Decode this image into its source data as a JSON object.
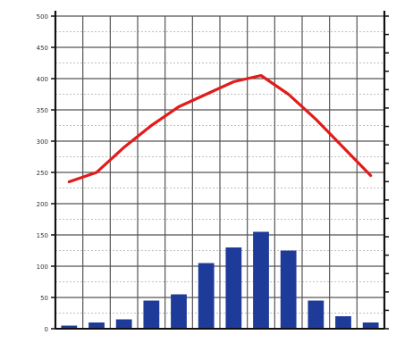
{
  "chart_data": {
    "type": "bar+line",
    "categories": [
      "",
      "",
      "",
      "",
      "",
      "",
      "",
      "",
      "",
      "",
      "",
      ""
    ],
    "series": [
      {
        "kind": "bar",
        "axis": "left",
        "color": "#1f3b9a",
        "values": [
          5,
          10,
          15,
          45,
          55,
          105,
          130,
          155,
          125,
          45,
          20,
          10
        ]
      },
      {
        "kind": "line",
        "axis": "left",
        "color": "#e21b1b",
        "values": [
          235,
          250,
          290,
          325,
          355,
          375,
          395,
          405,
          375,
          335,
          290,
          245
        ]
      }
    ],
    "left_axis": {
      "ylim": [
        0,
        500
      ],
      "ticks": [
        0,
        50,
        100,
        150,
        200,
        250,
        300,
        350,
        400,
        450,
        500
      ],
      "tick_labels": [
        "0",
        "50",
        "100",
        "150",
        "200",
        "250",
        "300",
        "350",
        "400",
        "450",
        "500"
      ]
    },
    "right_axis": {
      "ylim": [
        -35,
        50
      ],
      "ticks": [
        -35,
        -30,
        -25,
        -20,
        -15,
        -10,
        -5,
        0,
        5,
        10,
        15,
        20,
        25,
        30,
        35,
        40,
        45,
        50
      ],
      "tick_labels": [
        "",
        "",
        "",
        "",
        "",
        "",
        "",
        "",
        "",
        "",
        "",
        "",
        "",
        "",
        "",
        "",
        "",
        ""
      ]
    },
    "grid": true,
    "legend": "none"
  }
}
